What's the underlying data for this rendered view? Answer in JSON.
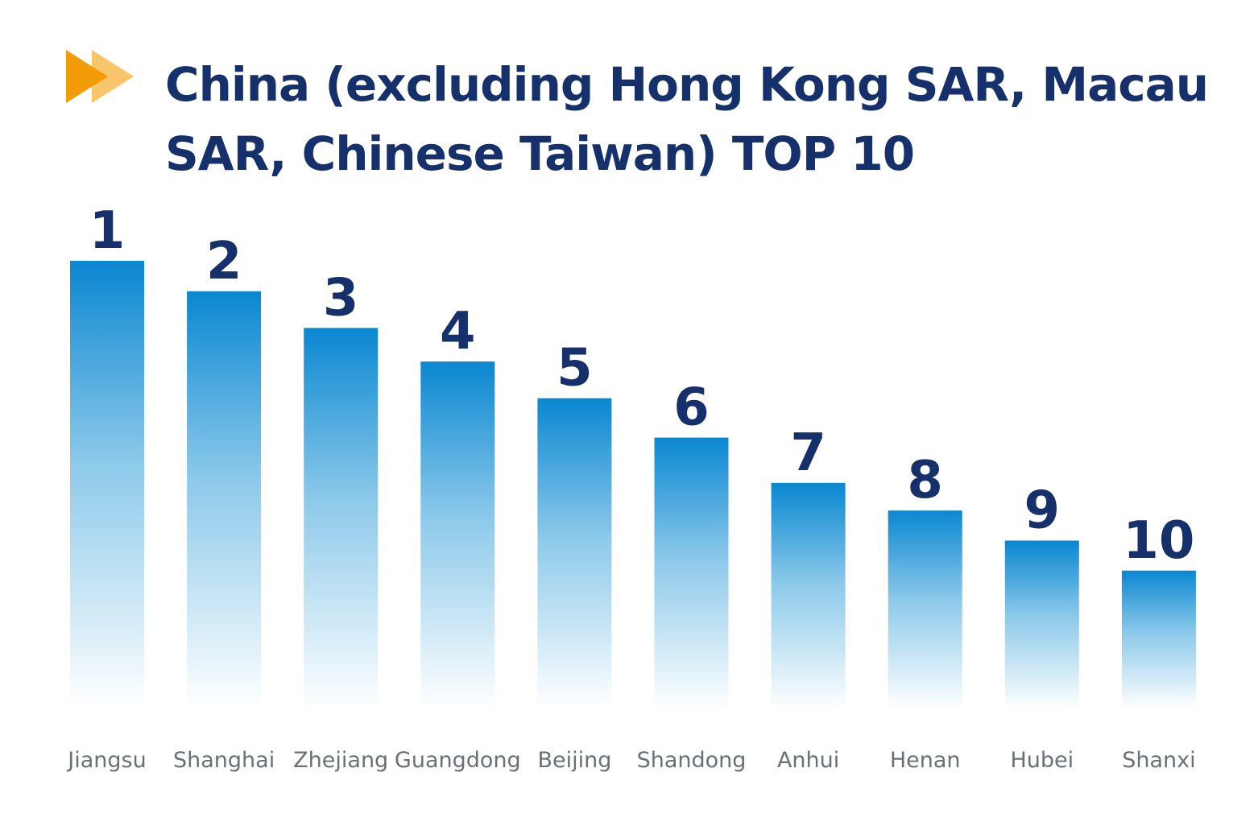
{
  "title": "China (excluding Hong Kong SAR, Macau SAR, Chinese Taiwan) TOP 10",
  "icons": {
    "title_marker": "double-chevron-right-icon"
  },
  "colors": {
    "title": "#15306a",
    "bar_top": "#0a87d1",
    "bar_mid": "#8cc9ea",
    "bar_bottom": "#ffffff",
    "rank_label": "#15306a",
    "category_label": "#6a6f78",
    "chevron_front": "#f29c07",
    "chevron_back": "#f8c56b"
  },
  "chart_data": {
    "type": "bar",
    "title": "China (excluding Hong Kong SAR, Macau SAR, Chinese Taiwan) TOP 10",
    "categories": [
      "Jiangsu",
      "Shanghai",
      "Zhejiang",
      "Guangdong",
      "Beijing",
      "Shandong",
      "Anhui",
      "Henan",
      "Hubei",
      "Shanxi"
    ],
    "data_labels": [
      "1",
      "2",
      "3",
      "4",
      "5",
      "6",
      "7",
      "8",
      "9",
      "10"
    ],
    "values": [
      100,
      93.2,
      85.0,
      77.5,
      69.3,
      60.5,
      50.4,
      44.2,
      37.5,
      30.8
    ],
    "ylim": [
      0,
      100
    ],
    "grid": false,
    "legend": "none",
    "xlabel": "",
    "ylabel": ""
  }
}
